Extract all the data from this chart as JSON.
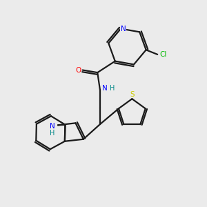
{
  "background_color": "#ebebeb",
  "bond_color": "#1a1a1a",
  "atom_colors": {
    "N": "#0000ff",
    "O": "#ff0000",
    "S": "#cccc00",
    "Cl": "#00bb00",
    "H": "#008888",
    "C": "#1a1a1a"
  },
  "figsize": [
    3.0,
    3.0
  ],
  "dpi": 100,
  "xlim": [
    0,
    10
  ],
  "ylim": [
    0,
    10
  ]
}
